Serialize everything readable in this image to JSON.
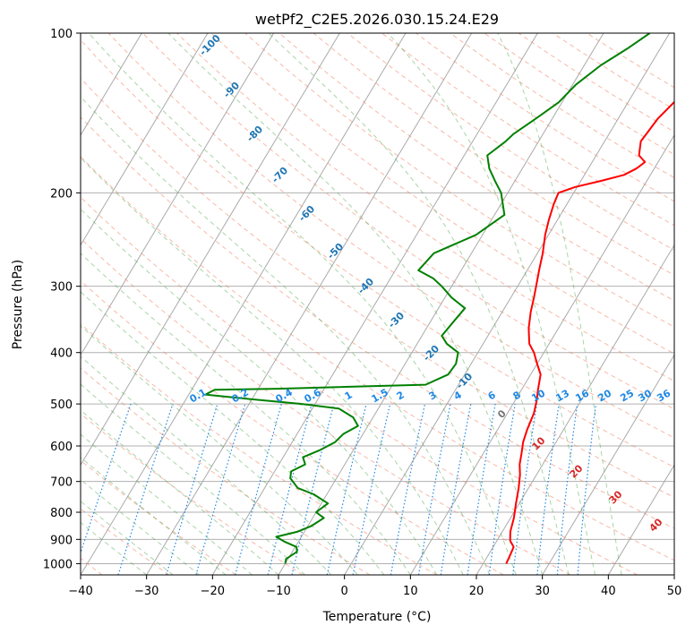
{
  "chart_data": {
    "type": "line",
    "title": "wetPf2_C2E5.2026.030.15.24.E29",
    "xlabel": "Temperature (°C)",
    "ylabel": "Pressure (hPa)",
    "xlim": [
      -40,
      50
    ],
    "ylim": [
      1050,
      100
    ],
    "y_scale": "log",
    "grid": true,
    "x_ticks": [
      "−40",
      "−30",
      "−20",
      "−10",
      "0",
      "10",
      "20",
      "30",
      "40",
      "50"
    ],
    "y_ticks": [
      "100",
      "200",
      "300",
      "400",
      "500",
      "600",
      "700",
      "800",
      "900",
      "1000"
    ],
    "series": [
      {
        "color": "#ff0000",
        "points": [
          [
            23.5,
            1000
          ],
          [
            23.3,
            960
          ],
          [
            23.1,
            930
          ],
          [
            22,
            905
          ],
          [
            21.2,
            870
          ],
          [
            20.5,
            820
          ],
          [
            19.5,
            770
          ],
          [
            18.5,
            720
          ],
          [
            17.5,
            680
          ],
          [
            16.5,
            650
          ],
          [
            15.8,
            620
          ],
          [
            15,
            590
          ],
          [
            14.5,
            560
          ],
          [
            14,
            520
          ],
          [
            13.2,
            490
          ],
          [
            12.5,
            470
          ],
          [
            11.5,
            440
          ],
          [
            10,
            420
          ],
          [
            8.5,
            400
          ],
          [
            7,
            385
          ],
          [
            5.5,
            360
          ],
          [
            4.3,
            335
          ],
          [
            3.5,
            315
          ],
          [
            2.8,
            300
          ],
          [
            1.8,
            280
          ],
          [
            0.8,
            260
          ],
          [
            -0.5,
            240
          ],
          [
            -1.3,
            225
          ],
          [
            -2,
            210
          ],
          [
            -2.3,
            200
          ],
          [
            -0.3,
            195
          ],
          [
            3,
            190
          ],
          [
            6,
            185
          ],
          [
            7.3,
            180
          ],
          [
            8,
            175
          ],
          [
            6.5,
            170
          ],
          [
            5.5,
            160
          ],
          [
            6,
            145
          ],
          [
            7.5,
            130
          ],
          [
            7.5,
            120
          ],
          [
            7.5,
            110
          ],
          [
            9,
            103
          ],
          [
            10,
            100
          ]
        ]
      },
      {
        "color": "#008000",
        "points": [
          [
            -10,
            1000
          ],
          [
            -10.3,
            980
          ],
          [
            -9.3,
            950
          ],
          [
            -9.8,
            930
          ],
          [
            -12,
            910
          ],
          [
            -13.8,
            890
          ],
          [
            -11,
            870
          ],
          [
            -9.5,
            850
          ],
          [
            -8.3,
            820
          ],
          [
            -10,
            800
          ],
          [
            -9,
            770
          ],
          [
            -12,
            740
          ],
          [
            -15,
            720
          ],
          [
            -17,
            690
          ],
          [
            -17.5,
            670
          ],
          [
            -16,
            650
          ],
          [
            -17,
            630
          ],
          [
            -15,
            610
          ],
          [
            -13.5,
            590
          ],
          [
            -13,
            570
          ],
          [
            -11.5,
            550
          ],
          [
            -13,
            530
          ],
          [
            -16,
            510
          ],
          [
            -22,
            500
          ],
          [
            -30,
            490
          ],
          [
            -37.5,
            480
          ],
          [
            -36.5,
            470
          ],
          [
            -27,
            468
          ],
          [
            -5,
            460
          ],
          [
            -2.5,
            440
          ],
          [
            -2.3,
            420
          ],
          [
            -3,
            400
          ],
          [
            -5.5,
            385
          ],
          [
            -7,
            372
          ],
          [
            -6.5,
            350
          ],
          [
            -6,
            330
          ],
          [
            -9,
            315
          ],
          [
            -11.5,
            300
          ],
          [
            -13.5,
            290
          ],
          [
            -16.5,
            280
          ],
          [
            -15.7,
            260
          ],
          [
            -11,
            240
          ],
          [
            -8.5,
            220
          ],
          [
            -11,
            200
          ],
          [
            -13,
            190
          ],
          [
            -15,
            180
          ],
          [
            -16.5,
            170
          ],
          [
            -15,
            160
          ],
          [
            -14.5,
            155
          ],
          [
            -12.5,
            145
          ],
          [
            -10.5,
            135
          ],
          [
            -9.5,
            125
          ],
          [
            -7.5,
            115
          ],
          [
            -5,
            107
          ],
          [
            -3,
            100
          ]
        ]
      }
    ],
    "dry_adiabat_labels": [
      "-100",
      "-90",
      "-80",
      "-70",
      "-60",
      "-50",
      "-40",
      "-30",
      "-20",
      "-10"
    ],
    "mixing_ratio_labels": [
      "0.1",
      "0.2",
      "0.4",
      "0.6",
      "1",
      "1.5",
      "2",
      "3",
      "4",
      "6",
      "8",
      "10",
      "13",
      "16",
      "20",
      "25",
      "30",
      "36"
    ],
    "moist_adiabat_labels": [
      "0",
      "10",
      "20",
      "30",
      "40"
    ],
    "colors": {
      "temperature": "#ff0000",
      "dewpoint": "#008000",
      "dry_adiabat": "#f08060",
      "moist_adiabat": "#40a040",
      "mixing_ratio": "#1e88e5",
      "isotherm": "#999999",
      "label_dry": "#1f77b4",
      "label_moist": "#d62728",
      "label_mixing": "#1e88e5"
    }
  }
}
